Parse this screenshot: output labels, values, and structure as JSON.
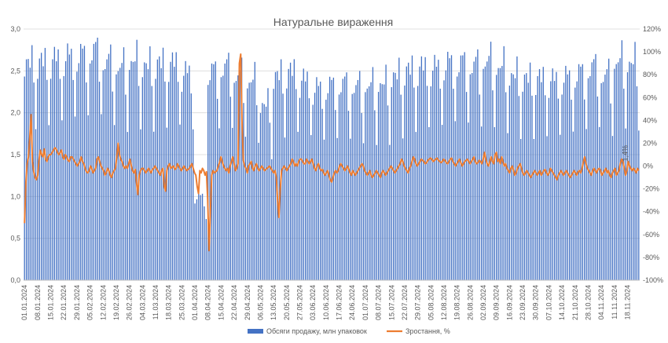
{
  "colors": {
    "bars": "#4472C4",
    "line": "#ED7D31",
    "grid": "#D9D9D9",
    "text": "#595959",
    "background": "#FFFFFF"
  },
  "chart_data": {
    "type": "bar",
    "title": "Натуральне вираження",
    "xlabel": "",
    "ylabel": "",
    "ylim": [
      0,
      3
    ],
    "y2lim": [
      -100,
      120
    ],
    "grid": true,
    "legend_position": "bottom",
    "x_start": "01.01.2024",
    "x_end": "24.11.2024",
    "categories": [
      "01.01.2024",
      "08.01.2024",
      "15.01.2024",
      "22.01.2024",
      "29.01.2024",
      "05.02.2024",
      "12.02.2024",
      "19.02.2024",
      "26.02.2024",
      "04.03.2024",
      "11.03.2024",
      "18.03.2024",
      "25.03.2024",
      "01.04.2024",
      "08.04.2024",
      "15.04.2024",
      "22.04.2024",
      "29.04.2024",
      "06.05.2024",
      "13.05.2024",
      "20.05.2024",
      "27.05.2024",
      "03.06.2024",
      "10.06.2024",
      "17.06.2024",
      "24.06.2024",
      "01.07.2024",
      "08.07.2024",
      "15.07.2024",
      "22.07.2024",
      "29.07.2024",
      "05.08.2024",
      "12.08.2024",
      "19.08.2024",
      "26.08.2024",
      "02.09.2024",
      "09.09.2024",
      "16.09.2024",
      "23.09.2024",
      "30.09.2024",
      "07.10.2024",
      "14.10.2024",
      "21.10.2024",
      "28.10.2024",
      "04.11.2024",
      "11.11.2024",
      "18.11.2024"
    ],
    "y_ticks": [
      "0,0",
      "0,5",
      "1,0",
      "1,5",
      "2,0",
      "2,5",
      "3,0"
    ],
    "y2_ticks": [
      "-100%",
      "-80%",
      "-60%",
      "-40%",
      "-20%",
      "0%",
      "20%",
      "40%",
      "60%",
      "80%",
      "100%",
      "120%"
    ],
    "weekly_level": [
      2.6,
      2.62,
      2.65,
      2.68,
      2.7,
      2.75,
      2.62,
      2.55,
      2.62,
      2.57,
      2.6,
      2.6,
      2.48,
      1.0,
      2.5,
      2.55,
      2.45,
      2.38,
      2.1,
      2.45,
      2.5,
      2.4,
      2.3,
      2.33,
      2.35,
      2.32,
      2.33,
      2.35,
      2.45,
      2.52,
      2.55,
      2.55,
      2.6,
      2.6,
      2.58,
      2.62,
      2.55,
      2.45,
      2.42,
      2.42,
      2.4,
      2.43,
      2.48,
      2.55,
      2.45,
      2.62,
      2.6
    ],
    "day_pattern": [
      0.95,
      1.0,
      1.04,
      1.02,
      1.08,
      0.9,
      0.72
    ],
    "growth_pct": [
      -50,
      -15,
      2,
      8,
      25,
      45,
      4,
      -5,
      -10,
      -12,
      -8,
      5,
      14,
      10,
      8,
      15,
      6,
      4,
      8,
      10,
      10,
      12,
      14,
      16,
      15,
      12,
      10,
      12,
      14,
      8,
      6,
      10,
      8,
      5,
      4,
      8,
      8,
      6,
      4,
      2,
      0,
      2,
      4,
      8,
      4,
      2,
      -2,
      -5,
      -6,
      -4,
      0,
      -2,
      -6,
      -4,
      -2,
      6,
      8,
      4,
      0,
      -2,
      -4,
      -8,
      -6,
      -2,
      -4,
      -8,
      -10,
      -6,
      -4,
      -2,
      8,
      20,
      10,
      6,
      4,
      0,
      -2,
      0,
      -2,
      2,
      6,
      0,
      -4,
      -6,
      -3,
      -15,
      -25,
      -8,
      -4,
      -2,
      -2,
      -4,
      -6,
      -4,
      -2,
      -4,
      -6,
      -3,
      -2,
      0,
      -2,
      -4,
      -6,
      -8,
      -4,
      -2,
      -18,
      -22,
      -4,
      0,
      2,
      -2,
      -1,
      0,
      -3,
      -2,
      2,
      0,
      -2,
      -4,
      -2,
      0,
      -2,
      -4,
      -3,
      -2,
      0,
      2,
      -2,
      -6,
      -8,
      -18,
      -24,
      -4,
      -6,
      -2,
      -4,
      -8,
      -5,
      -30,
      -74,
      -40,
      -8,
      -4,
      -6,
      -5,
      -4,
      0,
      3,
      8,
      4,
      0,
      -2,
      -4,
      -2,
      -6,
      0,
      4,
      8,
      2,
      -4,
      -2,
      2,
      90,
      98,
      40,
      5,
      0,
      -2,
      -6,
      0,
      2,
      4,
      -2,
      -4,
      0,
      2,
      -2,
      -4,
      -2,
      0,
      -2,
      -4,
      -3,
      -2,
      -1,
      0,
      -2,
      -4,
      -6,
      -4,
      -10,
      -30,
      -45,
      -20,
      -4,
      -2,
      0,
      -2,
      -4,
      -2,
      0,
      2,
      6,
      4,
      0,
      2,
      0,
      4,
      6,
      6,
      4,
      2,
      2,
      6,
      4,
      2,
      4,
      6,
      2,
      -2,
      -4,
      0,
      2,
      -2,
      -4,
      -3,
      -6,
      -8,
      -6,
      -4,
      -8,
      -12,
      -14,
      -10,
      -6,
      -4,
      -6,
      -4,
      0,
      2,
      0,
      -2,
      -4,
      -2,
      0,
      -3,
      -6,
      -8,
      -4,
      -6,
      -8,
      -6,
      -4,
      -2,
      0,
      2,
      0,
      -4,
      -6,
      -8,
      -6,
      -4,
      -8,
      -10,
      -8,
      -6,
      -4,
      -6,
      -8,
      -10,
      -6,
      -4,
      -6,
      -8,
      -6,
      -4,
      -2,
      0,
      -2,
      -4,
      -6,
      -4,
      -2,
      0,
      2,
      6,
      4,
      0,
      -2,
      -4,
      -6,
      -2,
      0,
      4,
      8,
      6,
      2,
      0,
      2,
      4,
      6,
      5,
      4,
      2,
      3,
      5,
      6,
      7,
      6,
      4,
      5,
      6,
      7,
      5,
      4,
      3,
      4,
      6,
      5,
      3,
      2,
      4,
      6,
      7,
      4,
      2,
      0,
      2,
      4,
      6,
      3,
      0,
      2,
      4,
      5,
      6,
      4,
      2,
      4,
      6,
      8,
      4,
      2,
      3,
      5,
      4,
      2,
      6,
      12,
      6,
      2,
      0,
      4,
      8,
      4,
      2,
      10,
      12,
      4,
      6,
      2,
      8,
      4,
      0,
      2,
      -2,
      -4,
      -6,
      -2,
      0,
      -4,
      -8,
      -6,
      -2,
      0,
      2,
      -2,
      -6,
      -8,
      -6,
      -4,
      -6,
      -8,
      -10,
      -8,
      -6,
      -4,
      -6,
      -8,
      -6,
      -4,
      -8,
      -6,
      -4,
      -3,
      -6,
      -8,
      -6,
      -2,
      -4,
      -6,
      -8,
      -10,
      -12,
      -8,
      -6,
      -4,
      -6,
      -8,
      -6,
      -4,
      -6,
      -8,
      -10,
      -8,
      -6,
      -4,
      -6,
      -8,
      -5,
      -4,
      -6,
      -2,
      4,
      8,
      2,
      -2,
      -4,
      -6,
      -8,
      -4,
      -2,
      -4,
      -6,
      -3,
      -2,
      -4,
      -8,
      -6,
      -4,
      -2,
      -6,
      -4,
      -8,
      -10,
      -6,
      -4,
      -2,
      -8,
      -6,
      -4,
      2,
      6,
      4,
      -2,
      -8,
      -4,
      4,
      0,
      -2,
      -4,
      -2,
      -4,
      -6,
      -2,
      -4
    ],
    "series": [
      {
        "name": "Обсяги продажу, млн упаковок",
        "type": "bar",
        "axis": "left"
      },
      {
        "name": "Зростання, %",
        "type": "line",
        "axis": "right"
      }
    ],
    "annotations": [
      {
        "text": "1,4%",
        "date": "18.11.2024",
        "value_pct": 1.4
      }
    ]
  }
}
